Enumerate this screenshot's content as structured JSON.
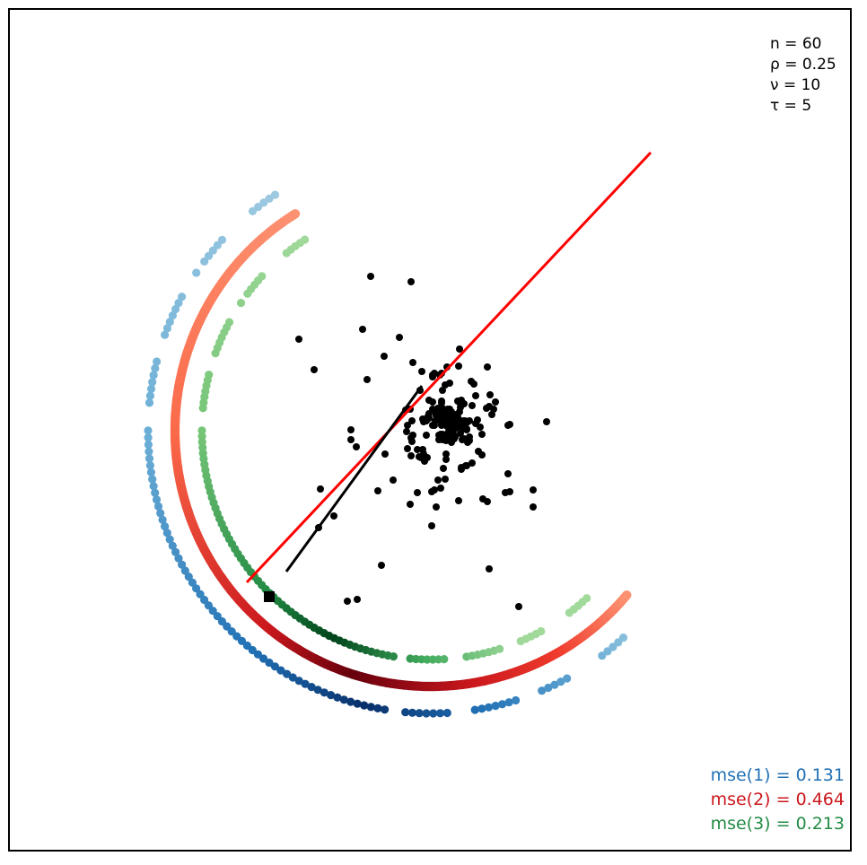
{
  "chart_data": {
    "type": "scatter",
    "title": "",
    "xlabel": "",
    "ylabel": "",
    "axes_shown": false,
    "grid": false,
    "annotations": [
      {
        "symbol": "n",
        "value": "60"
      },
      {
        "symbol": "ρ",
        "value": "0.25"
      },
      {
        "symbol": "ν",
        "value": "10"
      },
      {
        "symbol": "τ",
        "value": "5"
      }
    ],
    "legend_placement": "bottom-right",
    "mse": [
      {
        "label": "mse(1)",
        "value": "0.131",
        "color": "#2171b5"
      },
      {
        "label": "mse(2)",
        "value": "0.464",
        "color": "#cb181d"
      },
      {
        "label": "mse(3)",
        "value": "0.213",
        "color": "#238b45"
      }
    ],
    "lines": [
      {
        "name": "red-line",
        "color": "#ff0000",
        "from": [
          -2.05,
          -1.69
        ],
        "to": [
          2.45,
          3.1
        ]
      },
      {
        "name": "black-line",
        "color": "#000000",
        "from": [
          -1.61,
          -1.57
        ],
        "to": [
          -0.1,
          0.5
        ]
      }
    ],
    "marker_square": [
      -1.8,
      -1.85
    ],
    "arcs": [
      {
        "name": "arc-1",
        "palette": "blues",
        "radius": 3.15,
        "dotted": true
      },
      {
        "name": "arc-2",
        "palette": "reds",
        "radius": 2.85,
        "dotted": false
      },
      {
        "name": "arc-3",
        "palette": "greens",
        "radius": 2.55,
        "dotted": true
      }
    ],
    "points": [
      [
        0.21,
        0.08
      ],
      [
        -0.76,
        1.13
      ],
      [
        -0.83,
        -0.18
      ],
      [
        0.04,
        0.64
      ],
      [
        0.58,
        -0.76
      ],
      [
        0.02,
        0.62
      ],
      [
        0.3,
        0.33
      ],
      [
        0.21,
        0.53
      ],
      [
        -0.42,
        -0.55
      ],
      [
        -0.35,
        1.04
      ],
      [
        0.01,
        -0.68
      ],
      [
        0.45,
        0.55
      ],
      [
        -0.09,
        0.13
      ],
      [
        0.05,
        0.11
      ],
      [
        0.26,
        -0.09
      ],
      [
        0.06,
        -0.85
      ],
      [
        0.72,
        0.32
      ],
      [
        0.34,
        -0.41
      ],
      [
        0.12,
        0.31
      ],
      [
        0.7,
        0.24
      ],
      [
        0.13,
        -0.04
      ],
      [
        0.83,
        -0.69
      ],
      [
        -0.71,
        0.57
      ],
      [
        0.55,
        0.04
      ],
      [
        0.02,
        0.6
      ],
      [
        0.32,
        0.91
      ],
      [
        0.53,
        -0.23
      ],
      [
        -0.89,
        -0.1
      ],
      [
        -0.1,
        0.66
      ],
      [
        0.27,
        0.18
      ],
      [
        -0.13,
        -0.29
      ],
      [
        -0.51,
        -0.26
      ],
      [
        0.26,
        0.02
      ],
      [
        0.19,
        -0.03
      ],
      [
        0.04,
        0.06
      ],
      [
        0.38,
        0.11
      ],
      [
        -0.12,
        0.45
      ],
      [
        0.27,
        -0.07
      ],
      [
        0.5,
        0.08
      ],
      [
        0.21,
        0.04
      ],
      [
        -0.21,
        0.11
      ],
      [
        0.12,
        0.64
      ],
      [
        -0.15,
        -0.21
      ],
      [
        0.08,
        0.17
      ],
      [
        0.88,
        0.07
      ],
      [
        -0.59,
        -0.67
      ],
      [
        -0.89,
        0.01
      ],
      [
        0.31,
        -0.78
      ],
      [
        0.06,
        0.17
      ],
      [
        0.17,
        0.07
      ],
      [
        0.65,
        0.27
      ],
      [
        0.17,
        -0.11
      ],
      [
        -0.23,
        -0.82
      ],
      [
        0.39,
        -0.39
      ],
      [
        0.34,
        -0.43
      ],
      [
        0.63,
        -0.79
      ],
      [
        0.1,
        0.62
      ],
      [
        0.88,
        -0.68
      ],
      [
        0.2,
        -0.02
      ],
      [
        0.16,
        -0.54
      ],
      [
        0.68,
        0.18
      ],
      [
        0.01,
        -1.06
      ],
      [
        -0.23,
        0.24
      ],
      [
        0.16,
        0.51
      ],
      [
        0.86,
        0.06
      ],
      [
        0.66,
        0.4
      ],
      [
        0.17,
        -0.32
      ],
      [
        -0.26,
        -0.2
      ],
      [
        0.62,
        0.25
      ],
      [
        -0.11,
        -0.3
      ],
      [
        -0.22,
        -0.28
      ],
      [
        -0.52,
        0.83
      ],
      [
        -0.07,
        -0.34
      ],
      [
        -0.2,
        0.76
      ],
      [
        0.86,
        -0.48
      ],
      [
        0.4,
        0.01
      ],
      [
        0.04,
        -0.66
      ],
      [
        0.19,
        0.22
      ],
      [
        -0.22,
        -0.08
      ],
      [
        -0.09,
        -0.21
      ],
      [
        0.1,
        0.14
      ],
      [
        0.4,
        -0.39
      ],
      [
        0.31,
        0.72
      ],
      [
        0.18,
        0.71
      ],
      [
        0.02,
        0.32
      ],
      [
        0.08,
        -0.55
      ],
      [
        -0.15,
        -0.69
      ],
      [
        0.63,
        0.71
      ],
      [
        0.5,
        0.39
      ],
      [
        0.17,
        -0.26
      ],
      [
        0.21,
        0.13
      ],
      [
        0.2,
        -0.08
      ],
      [
        0.09,
        -0.1
      ],
      [
        0.14,
        -0.42
      ],
      [
        0.06,
        0.17
      ],
      [
        -0.02,
        0.14
      ],
      [
        0.11,
        -0.64
      ],
      [
        -0.28,
        0.23
      ],
      [
        0.23,
        0.04
      ],
      [
        -0.03,
        0.16
      ],
      [
        0.12,
        0.07
      ],
      [
        0.57,
        -0.27
      ],
      [
        -0.08,
        -0.26
      ],
      [
        0.48,
        0.52
      ],
      [
        0.13,
        -0.1
      ],
      [
        -0.05,
        0.11
      ],
      [
        0.43,
        -0.07
      ],
      [
        -0.27,
        -0.01
      ],
      [
        -0.2,
        -0.05
      ],
      [
        0.02,
        0.06
      ],
      [
        0.13,
        0.45
      ],
      [
        0.57,
        -0.04
      ],
      [
        0.37,
        -0.09
      ],
      [
        -0.26,
        0.06
      ],
      [
        0.46,
        -0.36
      ],
      [
        0.19,
        0.11
      ],
      [
        0.35,
        -0.1
      ],
      [
        0.22,
        -0.07
      ],
      [
        0.08,
        0.25
      ],
      [
        0.12,
        0.08
      ],
      [
        0.2,
        -0.01
      ],
      [
        -0.04,
        -0.3
      ],
      [
        0.06,
        0.2
      ],
      [
        0.09,
        0.14
      ],
      [
        0.27,
        0.12
      ],
      [
        0.38,
        0.08
      ],
      [
        0.25,
        -0.03
      ],
      [
        0.2,
        0.09
      ],
      [
        -0.08,
        0.1
      ],
      [
        0.43,
        0.11
      ],
      [
        0.23,
        0.21
      ],
      [
        0.11,
        -0.04
      ],
      [
        0.33,
        0.26
      ],
      [
        -0.21,
        -0.12
      ],
      [
        -0.05,
        -0.05
      ],
      [
        0.23,
        -0.13
      ],
      [
        0.46,
        0.28
      ],
      [
        0.33,
        0.3
      ],
      [
        0.41,
        -0.13
      ],
      [
        0.3,
        0.11
      ],
      [
        0.09,
        -0.05
      ],
      [
        0.2,
        -0.1
      ],
      [
        0.36,
        0.11
      ],
      [
        0.43,
        -0.11
      ],
      [
        -0.02,
        0.19
      ],
      [
        0.34,
        0.04
      ],
      [
        0.06,
        0.19
      ],
      [
        0.21,
        0.17
      ],
      [
        0.02,
        0.24
      ],
      [
        -0.02,
        0.34
      ],
      [
        0.4,
        0.02
      ],
      [
        0.37,
        0.3
      ],
      [
        0.15,
        -0.08
      ],
      [
        0.52,
        0.12
      ],
      [
        0.12,
        0.33
      ],
      [
        0.26,
        0.02
      ],
      [
        0.1,
        0.23
      ],
      [
        0.11,
        -0.06
      ],
      [
        0.4,
        0.09
      ],
      [
        0.12,
        0.06
      ],
      [
        0.34,
        0.34
      ],
      [
        0.33,
        -0.03
      ],
      [
        0.25,
        0.08
      ],
      [
        0.19,
        0.24
      ],
      [
        0.36,
        0.02
      ],
      [
        0.16,
        0.14
      ],
      [
        0.21,
        0.15
      ],
      [
        0.13,
        0.25
      ],
      [
        0.24,
        0.06
      ],
      [
        0.29,
        0.12
      ],
      [
        0.19,
        0.16
      ],
      [
        0.13,
        0.18
      ],
      [
        0.21,
        0.24
      ],
      [
        0.25,
        0.08
      ],
      [
        0.32,
        0.21
      ],
      [
        0.14,
        0.07
      ],
      [
        0.14,
        0.12
      ],
      [
        0.3,
        0.15
      ],
      [
        0.23,
        0.1
      ],
      [
        0.21,
        0.06
      ],
      [
        0.28,
        0.03
      ],
      [
        0.2,
        0.17
      ],
      [
        0.18,
        0.05
      ],
      [
        0.31,
        0.06
      ],
      [
        0.17,
        0.1
      ],
      [
        0.19,
        0.16
      ],
      [
        0.22,
        0.13
      ],
      [
        0.26,
        0.18
      ],
      [
        0.24,
        0.12
      ],
      [
        0.22,
        0.17
      ],
      [
        0.21,
        0.13
      ],
      [
        -1.47,
        1.02
      ],
      [
        -1.3,
        0.68
      ],
      [
        -1.08,
        -0.95
      ],
      [
        -1.23,
        -0.65
      ],
      [
        -1.25,
        -1.08
      ],
      [
        1.14,
        -0.66
      ],
      [
        1.29,
        0.1
      ],
      [
        1.14,
        -0.85
      ],
      [
        0.65,
        -1.54
      ],
      [
        -0.55,
        -1.5
      ],
      [
        -0.93,
        -1.9
      ],
      [
        -0.82,
        -1.88
      ],
      [
        0.98,
        -1.96
      ],
      [
        -0.67,
        1.72
      ],
      [
        -0.22,
        1.66
      ]
    ]
  }
}
